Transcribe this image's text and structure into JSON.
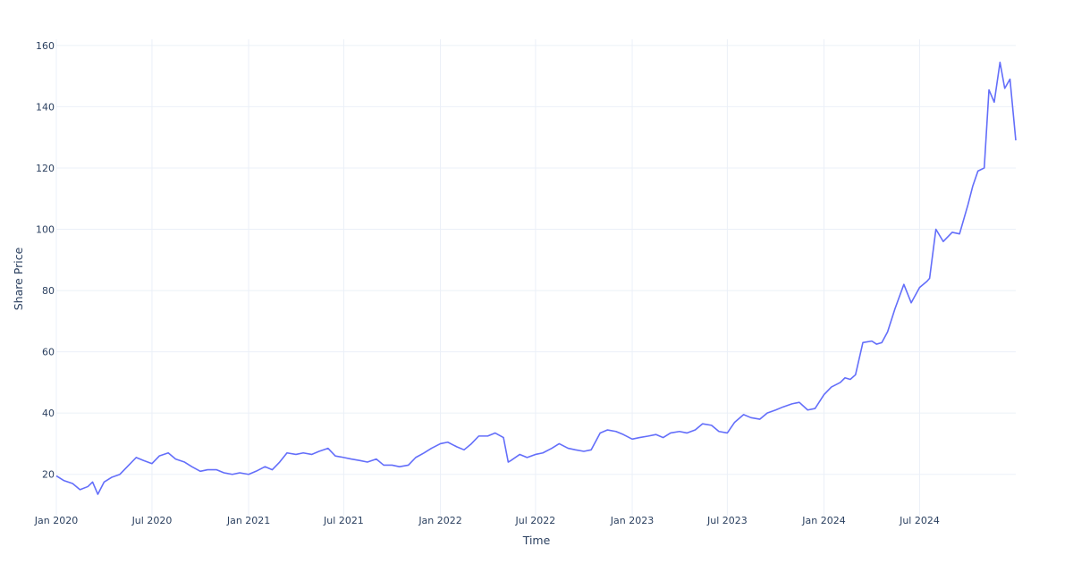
{
  "chart_data": {
    "type": "line",
    "title": "",
    "xlabel": "Time",
    "ylabel": "Share Price",
    "x_tick_labels": [
      "Jan 2020",
      "Jul 2020",
      "Jan 2021",
      "Jul 2021",
      "Jan 2022",
      "Jul 2022",
      "Jan 2023",
      "Jul 2023",
      "Jan 2024",
      "Jul 2024"
    ],
    "x_tick_dates": [
      "2020-01-01",
      "2020-07-01",
      "2021-01-01",
      "2021-07-01",
      "2022-01-01",
      "2022-07-01",
      "2023-01-01",
      "2023-07-01",
      "2024-01-01",
      "2024-07-01"
    ],
    "y_tick_labels": [
      "20",
      "40",
      "60",
      "80",
      "100",
      "120",
      "140",
      "160"
    ],
    "y_ticks": [
      20,
      40,
      60,
      80,
      100,
      120,
      140,
      160
    ],
    "xlim": [
      "2020-01-01",
      "2024-12-31"
    ],
    "ylim": [
      6.5,
      162
    ],
    "grid": true,
    "line_color": "#636efa",
    "series": [
      {
        "x": [
          "2020-01-01",
          "2020-01-15",
          "2020-02-01",
          "2020-02-15",
          "2020-03-01",
          "2020-03-10",
          "2020-03-20",
          "2020-04-01",
          "2020-04-15",
          "2020-05-01",
          "2020-05-15",
          "2020-06-01",
          "2020-06-15",
          "2020-07-01",
          "2020-07-15",
          "2020-08-01",
          "2020-08-15",
          "2020-09-01",
          "2020-09-15",
          "2020-10-01",
          "2020-10-15",
          "2020-11-01",
          "2020-11-15",
          "2020-12-01",
          "2020-12-15",
          "2021-01-01",
          "2021-01-15",
          "2021-02-01",
          "2021-02-15",
          "2021-03-01",
          "2021-03-15",
          "2021-04-01",
          "2021-04-15",
          "2021-05-01",
          "2021-05-15",
          "2021-06-01",
          "2021-06-15",
          "2021-07-01",
          "2021-07-15",
          "2021-08-01",
          "2021-08-15",
          "2021-09-01",
          "2021-09-15",
          "2021-10-01",
          "2021-10-15",
          "2021-11-01",
          "2021-11-15",
          "2021-12-01",
          "2021-12-15",
          "2022-01-01",
          "2022-01-15",
          "2022-02-01",
          "2022-02-15",
          "2022-03-01",
          "2022-03-15",
          "2022-04-01",
          "2022-04-15",
          "2022-05-01",
          "2022-05-10",
          "2022-05-15",
          "2022-06-01",
          "2022-06-15",
          "2022-07-01",
          "2022-07-15",
          "2022-08-01",
          "2022-08-15",
          "2022-09-01",
          "2022-09-15",
          "2022-10-01",
          "2022-10-15",
          "2022-11-01",
          "2022-11-15",
          "2022-12-01",
          "2022-12-15",
          "2023-01-01",
          "2023-01-15",
          "2023-02-01",
          "2023-02-15",
          "2023-03-01",
          "2023-03-15",
          "2023-04-01",
          "2023-04-15",
          "2023-05-01",
          "2023-05-15",
          "2023-06-01",
          "2023-06-15",
          "2023-07-01",
          "2023-07-15",
          "2023-08-01",
          "2023-08-15",
          "2023-09-01",
          "2023-09-15",
          "2023-10-01",
          "2023-10-15",
          "2023-11-01",
          "2023-11-15",
          "2023-12-01",
          "2023-12-15",
          "2024-01-01",
          "2024-01-15",
          "2024-02-01",
          "2024-02-10",
          "2024-02-20",
          "2024-03-01",
          "2024-03-15",
          "2024-04-01",
          "2024-04-10",
          "2024-04-20",
          "2024-05-01",
          "2024-05-15",
          "2024-06-01",
          "2024-06-15",
          "2024-07-01",
          "2024-07-15",
          "2024-07-20",
          "2024-08-01",
          "2024-08-15",
          "2024-09-01",
          "2024-09-15",
          "2024-10-01",
          "2024-10-10",
          "2024-10-20",
          "2024-11-01",
          "2024-11-10",
          "2024-11-20",
          "2024-12-01",
          "2024-12-10",
          "2024-12-20",
          "2024-12-31"
        ],
        "y": [
          19.5,
          18.0,
          17.0,
          15.0,
          16.0,
          17.5,
          13.5,
          17.5,
          19.0,
          20.0,
          22.5,
          25.5,
          24.5,
          23.5,
          26.0,
          27.0,
          25.0,
          24.0,
          22.5,
          21.0,
          21.5,
          21.5,
          20.5,
          20.0,
          20.5,
          20.0,
          21.0,
          22.5,
          21.5,
          24.0,
          27.0,
          26.5,
          27.0,
          26.5,
          27.5,
          28.5,
          26.0,
          25.5,
          25.0,
          24.5,
          24.0,
          25.0,
          23.0,
          23.0,
          22.5,
          23.0,
          25.5,
          27.0,
          28.5,
          30.0,
          30.5,
          29.0,
          28.0,
          30.0,
          32.5,
          32.5,
          33.5,
          32.0,
          24.0,
          24.5,
          26.5,
          25.5,
          26.5,
          27.0,
          28.5,
          30.0,
          28.5,
          28.0,
          27.5,
          28.0,
          33.5,
          34.5,
          34.0,
          33.0,
          31.5,
          32.0,
          32.5,
          33.0,
          32.0,
          33.5,
          34.0,
          33.5,
          34.5,
          36.5,
          36.0,
          34.0,
          33.5,
          37.0,
          39.5,
          38.5,
          38.0,
          40.0,
          41.0,
          42.0,
          43.0,
          43.5,
          41.0,
          41.5,
          46.0,
          48.5,
          50.0,
          51.5,
          51.0,
          52.5,
          63.0,
          63.5,
          62.5,
          63.0,
          66.5,
          74.0,
          82.0,
          76.0,
          81.0,
          83.0,
          84.0,
          100.0,
          96.0,
          99.0,
          98.5,
          108.0,
          114.0,
          119.0,
          120.0,
          145.5,
          141.5,
          154.5,
          146.0,
          149.0,
          129.0
        ]
      }
    ]
  }
}
